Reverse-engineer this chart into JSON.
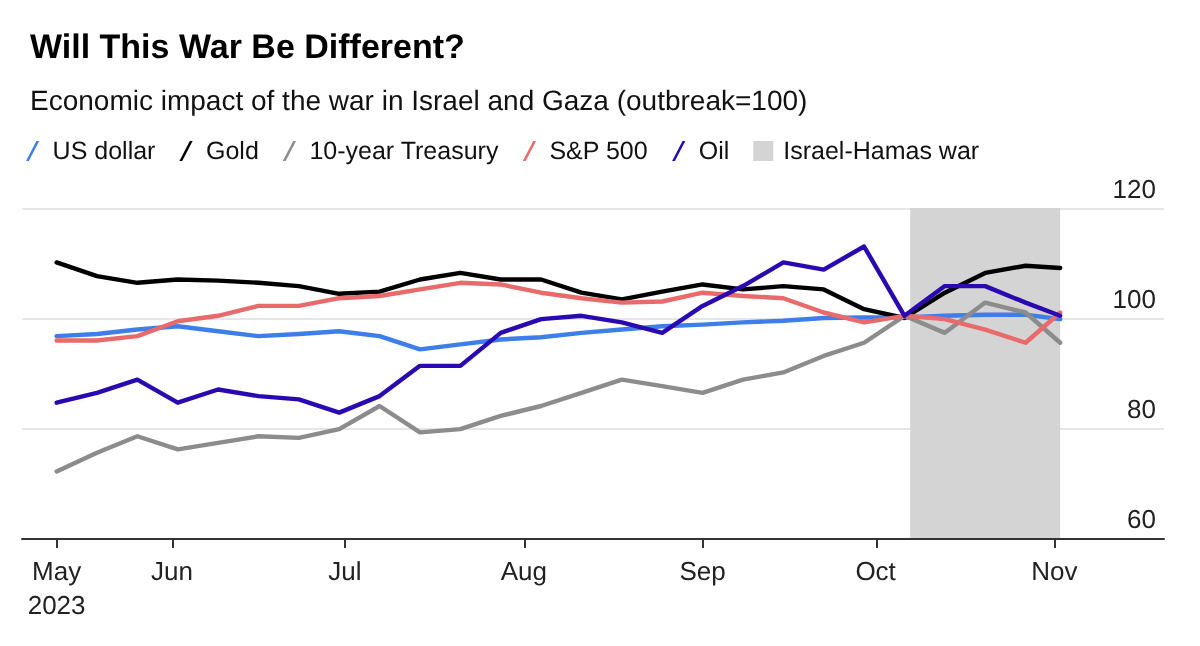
{
  "chart_data": {
    "type": "line",
    "title": "Will This War Be Different?",
    "subtitle": "Economic impact of the war in Israel and Gaza (outbreak=100)",
    "x": [
      "2023-05-12",
      "2023-05-19",
      "2023-05-26",
      "2023-06-02",
      "2023-06-09",
      "2023-06-16",
      "2023-06-23",
      "2023-06-30",
      "2023-07-07",
      "2023-07-14",
      "2023-07-21",
      "2023-07-28",
      "2023-08-04",
      "2023-08-11",
      "2023-08-18",
      "2023-08-25",
      "2023-09-01",
      "2023-09-08",
      "2023-09-15",
      "2023-09-22",
      "2023-09-29",
      "2023-10-06",
      "2023-10-13",
      "2023-10-20",
      "2023-10-27",
      "2023-11-02"
    ],
    "series": [
      {
        "name": "US dollar",
        "color": "#3d7ee8",
        "values": [
          96.7,
          97.1,
          97.9,
          98.5,
          97.6,
          96.7,
          97.1,
          97.6,
          96.7,
          94.3,
          95.2,
          96.1,
          96.5,
          97.3,
          97.9,
          98.5,
          98.8,
          99.2,
          99.5,
          100,
          100.1,
          100.1,
          100.4,
          100.6,
          100.6,
          99.8
        ]
      },
      {
        "name": "Gold",
        "color": "#000000",
        "values": [
          110.1,
          107.6,
          106.4,
          107.0,
          106.8,
          106.4,
          105.8,
          104.4,
          104.8,
          107.0,
          108.2,
          107.0,
          107.0,
          104.6,
          103.4,
          104.8,
          106.1,
          105.2,
          105.8,
          105.2,
          101.6,
          100,
          104.6,
          108.2,
          109.5,
          109.1
        ]
      },
      {
        "name": "10-year Treasury",
        "color": "#8c8c8c",
        "values": [
          72.1,
          75.5,
          78.5,
          76.1,
          77.3,
          78.5,
          78.2,
          79.8,
          84.0,
          79.2,
          79.8,
          82.2,
          84.0,
          86.4,
          88.8,
          87.6,
          86.4,
          88.8,
          90.1,
          93.1,
          95.5,
          100.4,
          97.3,
          102.8,
          101.0,
          95.5
        ]
      },
      {
        "name": "S&P 500",
        "color": "#e86a6a",
        "values": [
          95.9,
          95.9,
          96.7,
          99.4,
          100.4,
          102.2,
          102.2,
          103.6,
          104.0,
          105.2,
          106.4,
          106.1,
          104.6,
          103.6,
          102.8,
          103.0,
          104.6,
          104.0,
          103.6,
          101.0,
          99.2,
          100.4,
          99.8,
          97.9,
          95.5,
          101.0
        ]
      },
      {
        "name": "Oil",
        "color": "#2a0ab0",
        "values": [
          84.6,
          86.4,
          88.8,
          84.6,
          87.0,
          85.8,
          85.2,
          82.8,
          85.8,
          91.3,
          91.3,
          97.3,
          99.8,
          100.4,
          99.2,
          97.3,
          102.2,
          105.8,
          110.1,
          108.8,
          113.0,
          100.4,
          105.8,
          105.8,
          102.8,
          100.4
        ]
      }
    ],
    "bands": [
      {
        "axis": "x",
        "from": "2023-10-07",
        "to": "2023-11-02",
        "label": "Israel-Hamas war",
        "color": "#d4d4d4"
      }
    ],
    "xlim": [
      "2023-05-06",
      "2023-11-20"
    ],
    "xticks": [
      {
        "value": "2023-05-12",
        "label": "May\n2023"
      },
      {
        "value": "2023-06-01",
        "label": "Jun"
      },
      {
        "value": "2023-07-01",
        "label": "Jul"
      },
      {
        "value": "2023-08-01",
        "label": "Aug"
      },
      {
        "value": "2023-09-01",
        "label": "Sep"
      },
      {
        "value": "2023-10-01",
        "label": "Oct"
      },
      {
        "value": "2023-11-01",
        "label": "Nov"
      }
    ],
    "ylim": [
      60,
      120
    ],
    "yticks": [
      60,
      80,
      100,
      120
    ],
    "grid": "y",
    "legend": "top left",
    "marker": "none",
    "line_style": "solid"
  }
}
